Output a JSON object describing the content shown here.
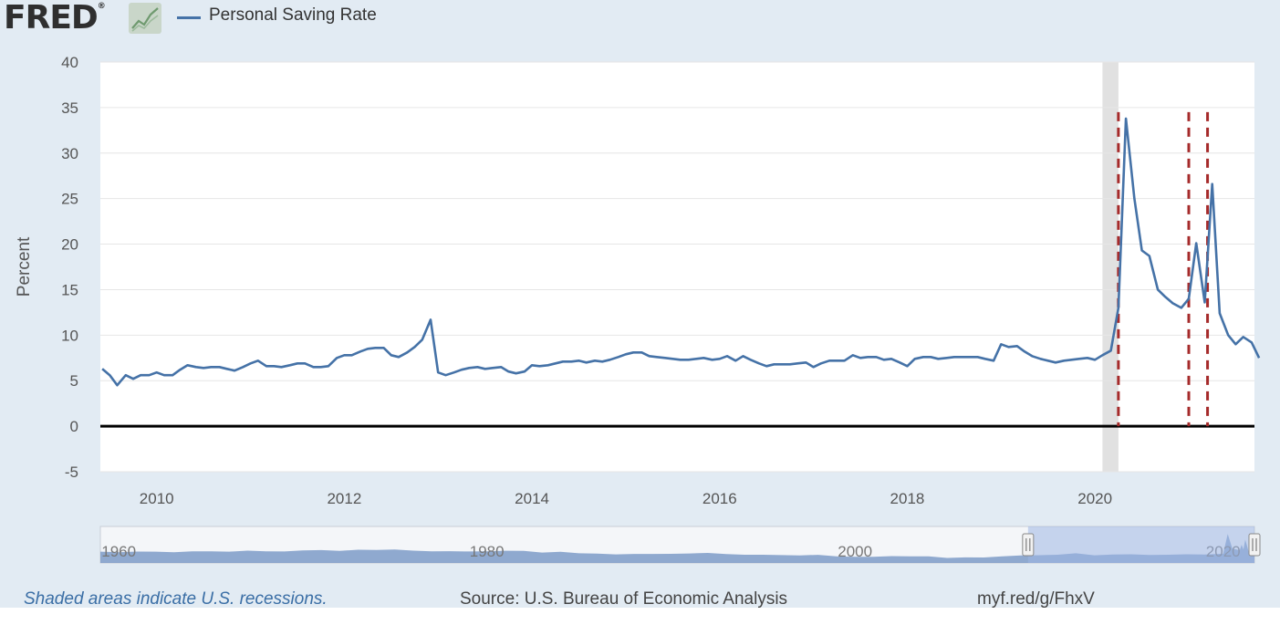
{
  "logo": {
    "text": "FRED",
    "reg_mark": "®"
  },
  "legend": {
    "label": "Personal Saving Rate",
    "color": "#4572a7"
  },
  "footer": {
    "note": "Shaded areas indicate U.S. recessions.",
    "source": "Source: U.S. Bureau of Economic Analysis",
    "link": "myf.red/g/FhxV"
  },
  "navigator": {
    "labels": [
      {
        "year": 1960,
        "text": "1960"
      },
      {
        "year": 1980,
        "text": "1980"
      },
      {
        "year": 2000,
        "text": "2000"
      },
      {
        "year": 2020,
        "text": "2020"
      }
    ],
    "range_start_year": 1959.0,
    "range_end_year": 2021.7,
    "selected_start_year": 2009.4,
    "selected_end_year": 2021.7,
    "history": [
      [
        1959.0,
        11.0
      ],
      [
        1960.0,
        10.4
      ],
      [
        1961.0,
        11.2
      ],
      [
        1962.0,
        11.0
      ],
      [
        1963.0,
        10.4
      ],
      [
        1964.0,
        11.4
      ],
      [
        1965.0,
        11.5
      ],
      [
        1966.0,
        11.1
      ],
      [
        1967.0,
        12.3
      ],
      [
        1968.0,
        11.4
      ],
      [
        1969.0,
        11.3
      ],
      [
        1970.0,
        12.6
      ],
      [
        1971.0,
        13.1
      ],
      [
        1972.0,
        12.0
      ],
      [
        1973.0,
        13.5
      ],
      [
        1974.0,
        13.2
      ],
      [
        1975.0,
        13.9
      ],
      [
        1976.0,
        12.3
      ],
      [
        1977.0,
        11.4
      ],
      [
        1978.0,
        11.7
      ],
      [
        1979.0,
        11.3
      ],
      [
        1980.0,
        11.5
      ],
      [
        1981.0,
        12.2
      ],
      [
        1982.0,
        12.1
      ],
      [
        1983.0,
        9.9
      ],
      [
        1984.0,
        10.9
      ],
      [
        1985.0,
        9.0
      ],
      [
        1986.0,
        8.6
      ],
      [
        1987.0,
        7.5
      ],
      [
        1988.0,
        8.1
      ],
      [
        1989.0,
        8.1
      ],
      [
        1990.0,
        8.2
      ],
      [
        1991.0,
        8.7
      ],
      [
        1992.0,
        9.4
      ],
      [
        1993.0,
        7.9
      ],
      [
        1994.0,
        7.0
      ],
      [
        1995.0,
        7.0
      ],
      [
        1996.0,
        6.6
      ],
      [
        1997.0,
        6.2
      ],
      [
        1998.0,
        6.9
      ],
      [
        1999.0,
        4.9
      ],
      [
        2000.0,
        4.3
      ],
      [
        2001.0,
        4.4
      ],
      [
        2002.0,
        5.3
      ],
      [
        2003.0,
        5.1
      ],
      [
        2004.0,
        4.9
      ],
      [
        2005.0,
        2.9
      ],
      [
        2006.0,
        3.6
      ],
      [
        2007.0,
        3.5
      ],
      [
        2008.0,
        4.9
      ],
      [
        2009.0,
        6.2
      ],
      [
        2010.0,
        6.5
      ],
      [
        2011.0,
        7.0
      ],
      [
        2012.0,
        8.9
      ],
      [
        2013.0,
        6.4
      ],
      [
        2014.0,
        7.3
      ],
      [
        2015.0,
        7.6
      ],
      [
        2016.0,
        6.8
      ],
      [
        2017.0,
        7.0
      ],
      [
        2018.0,
        7.7
      ],
      [
        2019.0,
        7.3
      ],
      [
        2020.0,
        8.3
      ],
      [
        2020.25,
        33.8
      ],
      [
        2020.5,
        14.8
      ],
      [
        2020.9,
        13.0
      ],
      [
        2021.0,
        20.0
      ],
      [
        2021.1,
        13.8
      ],
      [
        2021.2,
        26.6
      ],
      [
        2021.4,
        10.0
      ],
      [
        2021.7,
        7.5
      ]
    ]
  },
  "chart_data": {
    "type": "line",
    "title": "",
    "xlabel": "",
    "ylabel": "Percent",
    "xlim": [
      2009.4,
      2021.7
    ],
    "ylim": [
      -5,
      40
    ],
    "yticks": [
      -5,
      0,
      5,
      10,
      15,
      20,
      25,
      30,
      35,
      40
    ],
    "xticks": [
      2010,
      2012,
      2014,
      2016,
      2018,
      2020
    ],
    "grid": "horizontal",
    "legend_position": "top-left",
    "recession_shading": [
      [
        2020.08,
        2020.25
      ]
    ],
    "reference_lines": [
      {
        "value": 0,
        "axis": "y",
        "style": "solid",
        "color": "#000000"
      },
      {
        "value": 2020.25,
        "axis": "x",
        "style": "dashed",
        "color": "#a52a2a"
      },
      {
        "value": 2021.0,
        "axis": "x",
        "style": "dashed",
        "color": "#a52a2a"
      },
      {
        "value": 2021.2,
        "axis": "x",
        "style": "dashed",
        "color": "#a52a2a"
      }
    ],
    "series": [
      {
        "name": "Personal Saving Rate",
        "color": "#4572a7",
        "points": [
          [
            2009.42,
            6.3
          ],
          [
            2009.5,
            5.6
          ],
          [
            2009.58,
            4.5
          ],
          [
            2009.67,
            5.6
          ],
          [
            2009.75,
            5.2
          ],
          [
            2009.83,
            5.6
          ],
          [
            2009.92,
            5.6
          ],
          [
            2010.0,
            5.9
          ],
          [
            2010.08,
            5.6
          ],
          [
            2010.17,
            5.6
          ],
          [
            2010.25,
            6.2
          ],
          [
            2010.33,
            6.7
          ],
          [
            2010.42,
            6.5
          ],
          [
            2010.5,
            6.4
          ],
          [
            2010.58,
            6.5
          ],
          [
            2010.67,
            6.5
          ],
          [
            2010.75,
            6.3
          ],
          [
            2010.83,
            6.1
          ],
          [
            2010.92,
            6.5
          ],
          [
            2011.0,
            6.9
          ],
          [
            2011.08,
            7.2
          ],
          [
            2011.17,
            6.6
          ],
          [
            2011.25,
            6.6
          ],
          [
            2011.33,
            6.5
          ],
          [
            2011.42,
            6.7
          ],
          [
            2011.5,
            6.9
          ],
          [
            2011.58,
            6.9
          ],
          [
            2011.67,
            6.5
          ],
          [
            2011.75,
            6.5
          ],
          [
            2011.83,
            6.6
          ],
          [
            2011.92,
            7.5
          ],
          [
            2012.0,
            7.8
          ],
          [
            2012.08,
            7.8
          ],
          [
            2012.17,
            8.2
          ],
          [
            2012.25,
            8.5
          ],
          [
            2012.33,
            8.6
          ],
          [
            2012.42,
            8.6
          ],
          [
            2012.5,
            7.8
          ],
          [
            2012.58,
            7.6
          ],
          [
            2012.67,
            8.1
          ],
          [
            2012.75,
            8.7
          ],
          [
            2012.83,
            9.5
          ],
          [
            2012.92,
            11.7
          ],
          [
            2013.0,
            5.9
          ],
          [
            2013.08,
            5.6
          ],
          [
            2013.17,
            5.9
          ],
          [
            2013.25,
            6.2
          ],
          [
            2013.33,
            6.4
          ],
          [
            2013.42,
            6.5
          ],
          [
            2013.5,
            6.3
          ],
          [
            2013.58,
            6.4
          ],
          [
            2013.67,
            6.5
          ],
          [
            2013.75,
            6.0
          ],
          [
            2013.83,
            5.8
          ],
          [
            2013.92,
            6.0
          ],
          [
            2014.0,
            6.7
          ],
          [
            2014.08,
            6.6
          ],
          [
            2014.17,
            6.7
          ],
          [
            2014.25,
            6.9
          ],
          [
            2014.33,
            7.1
          ],
          [
            2014.42,
            7.1
          ],
          [
            2014.5,
            7.2
          ],
          [
            2014.58,
            7.0
          ],
          [
            2014.67,
            7.2
          ],
          [
            2014.75,
            7.1
          ],
          [
            2014.83,
            7.3
          ],
          [
            2014.92,
            7.6
          ],
          [
            2015.0,
            7.9
          ],
          [
            2015.08,
            8.1
          ],
          [
            2015.17,
            8.1
          ],
          [
            2015.25,
            7.7
          ],
          [
            2015.33,
            7.6
          ],
          [
            2015.42,
            7.5
          ],
          [
            2015.5,
            7.4
          ],
          [
            2015.58,
            7.3
          ],
          [
            2015.67,
            7.3
          ],
          [
            2015.75,
            7.4
          ],
          [
            2015.83,
            7.5
          ],
          [
            2015.92,
            7.3
          ],
          [
            2016.0,
            7.4
          ],
          [
            2016.08,
            7.7
          ],
          [
            2016.17,
            7.2
          ],
          [
            2016.25,
            7.7
          ],
          [
            2016.33,
            7.3
          ],
          [
            2016.42,
            6.9
          ],
          [
            2016.5,
            6.6
          ],
          [
            2016.58,
            6.8
          ],
          [
            2016.67,
            6.8
          ],
          [
            2016.75,
            6.8
          ],
          [
            2016.83,
            6.9
          ],
          [
            2016.92,
            7.0
          ],
          [
            2017.0,
            6.5
          ],
          [
            2017.08,
            6.9
          ],
          [
            2017.17,
            7.2
          ],
          [
            2017.25,
            7.2
          ],
          [
            2017.33,
            7.2
          ],
          [
            2017.42,
            7.8
          ],
          [
            2017.5,
            7.5
          ],
          [
            2017.58,
            7.6
          ],
          [
            2017.67,
            7.6
          ],
          [
            2017.75,
            7.3
          ],
          [
            2017.83,
            7.4
          ],
          [
            2017.92,
            7.0
          ],
          [
            2018.0,
            6.6
          ],
          [
            2018.08,
            7.4
          ],
          [
            2018.17,
            7.6
          ],
          [
            2018.25,
            7.6
          ],
          [
            2018.33,
            7.4
          ],
          [
            2018.42,
            7.5
          ],
          [
            2018.5,
            7.6
          ],
          [
            2018.58,
            7.6
          ],
          [
            2018.67,
            7.6
          ],
          [
            2018.75,
            7.6
          ],
          [
            2018.83,
            7.4
          ],
          [
            2018.92,
            7.2
          ],
          [
            2019.0,
            9.0
          ],
          [
            2019.08,
            8.7
          ],
          [
            2019.17,
            8.8
          ],
          [
            2019.25,
            8.2
          ],
          [
            2019.33,
            7.7
          ],
          [
            2019.42,
            7.4
          ],
          [
            2019.5,
            7.2
          ],
          [
            2019.58,
            7.0
          ],
          [
            2019.67,
            7.2
          ],
          [
            2019.75,
            7.3
          ],
          [
            2019.83,
            7.4
          ],
          [
            2019.92,
            7.5
          ],
          [
            2020.0,
            7.3
          ],
          [
            2020.08,
            7.8
          ],
          [
            2020.17,
            8.3
          ],
          [
            2020.25,
            13.0
          ],
          [
            2020.33,
            33.8
          ],
          [
            2020.42,
            25.0
          ],
          [
            2020.5,
            19.3
          ],
          [
            2020.58,
            18.7
          ],
          [
            2020.67,
            15.0
          ],
          [
            2020.75,
            14.2
          ],
          [
            2020.83,
            13.5
          ],
          [
            2020.92,
            13.0
          ],
          [
            2021.0,
            14.0
          ],
          [
            2021.08,
            20.1
          ],
          [
            2021.17,
            13.6
          ],
          [
            2021.25,
            26.6
          ],
          [
            2021.33,
            12.4
          ],
          [
            2021.42,
            10.0
          ],
          [
            2021.5,
            9.0
          ],
          [
            2021.58,
            9.8
          ],
          [
            2021.67,
            9.2
          ],
          [
            2021.75,
            7.5
          ]
        ]
      }
    ]
  }
}
